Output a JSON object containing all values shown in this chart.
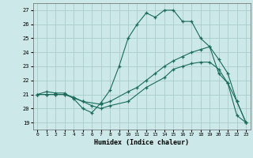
{
  "title": "",
  "xlabel": "Humidex (Indice chaleur)",
  "background_color": "#cce8e8",
  "grid_color": "#aacccc",
  "line_color": "#1a6b5a",
  "xlim": [
    -0.5,
    23.5
  ],
  "ylim": [
    18.5,
    27.5
  ],
  "xticks": [
    0,
    1,
    2,
    3,
    4,
    5,
    6,
    7,
    8,
    9,
    10,
    11,
    12,
    13,
    14,
    15,
    16,
    17,
    18,
    19,
    20,
    21,
    22,
    23
  ],
  "yticks": [
    19,
    20,
    21,
    22,
    23,
    24,
    25,
    26,
    27
  ],
  "line1_x": [
    0,
    1,
    2,
    3,
    4,
    5,
    6,
    7,
    8,
    9,
    10,
    11,
    12,
    13,
    14,
    15,
    16,
    17,
    18,
    19,
    20,
    21,
    22,
    23
  ],
  "line1_y": [
    21.0,
    21.2,
    21.1,
    21.1,
    20.7,
    20.0,
    19.7,
    20.4,
    21.3,
    23.0,
    25.0,
    26.0,
    26.8,
    26.5,
    27.0,
    27.0,
    26.2,
    26.2,
    25.0,
    24.4,
    22.5,
    21.8,
    19.5,
    19.0
  ],
  "line2_x": [
    0,
    1,
    2,
    3,
    5,
    7,
    8,
    10,
    11,
    12,
    13,
    14,
    15,
    16,
    17,
    18,
    19,
    20,
    21,
    22,
    23
  ],
  "line2_y": [
    21.0,
    21.0,
    21.0,
    21.0,
    20.5,
    20.3,
    20.5,
    21.2,
    21.5,
    22.0,
    22.5,
    23.0,
    23.4,
    23.7,
    24.0,
    24.2,
    24.4,
    23.5,
    22.5,
    20.5,
    19.0
  ],
  "line3_x": [
    0,
    1,
    2,
    3,
    4,
    5,
    6,
    7,
    8,
    10,
    12,
    14,
    15,
    16,
    17,
    18,
    19,
    20,
    21,
    22,
    23
  ],
  "line3_y": [
    21.0,
    21.0,
    21.0,
    21.0,
    20.8,
    20.5,
    20.2,
    20.0,
    20.2,
    20.5,
    21.5,
    22.2,
    22.8,
    23.0,
    23.2,
    23.3,
    23.3,
    22.8,
    21.8,
    20.5,
    19.0
  ]
}
